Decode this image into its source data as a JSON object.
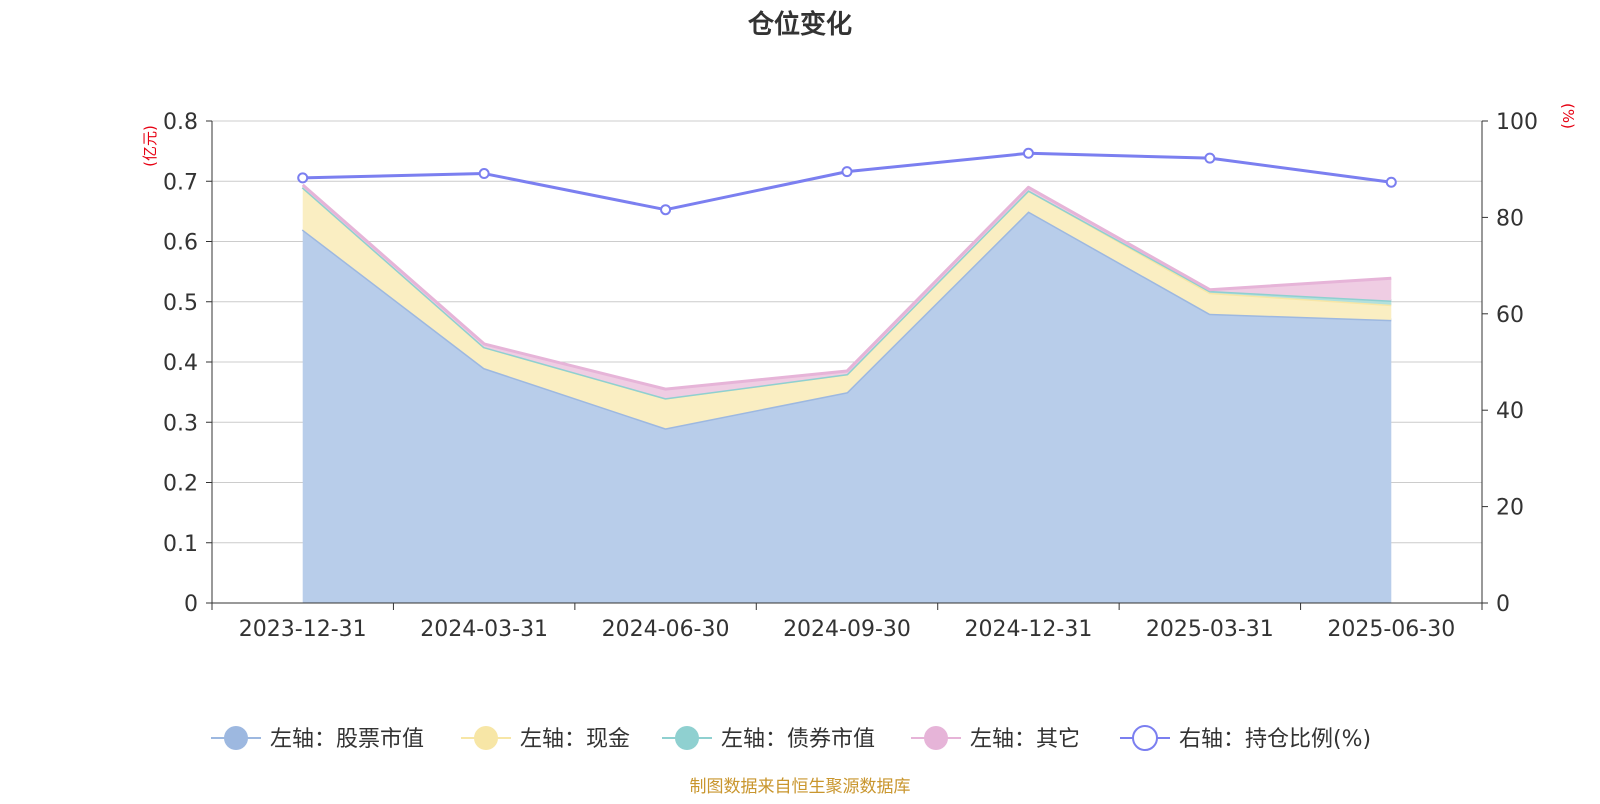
{
  "chart_data": {
    "type": "area",
    "title": "仓位变化",
    "categories": [
      "2023-12-31",
      "2024-03-31",
      "2024-06-30",
      "2024-09-30",
      "2024-12-31",
      "2025-03-31",
      "2025-06-30"
    ],
    "left_axis": {
      "label": "(亿元)",
      "ylim": [
        0,
        0.8
      ],
      "ticks": [
        "0",
        "0.1",
        "0.2",
        "0.3",
        "0.4",
        "0.5",
        "0.6",
        "0.7",
        "0.8"
      ]
    },
    "right_axis": {
      "label": "(%)",
      "ylim": [
        0,
        100
      ],
      "ticks": [
        "0",
        "20",
        "40",
        "60",
        "80",
        "100"
      ]
    },
    "stacked": true,
    "grid": true,
    "legend_position": "bottom",
    "series": [
      {
        "name": "左轴：股票市值",
        "axis": "left",
        "kind": "area",
        "color": "#9db8e0",
        "fill": "#b8cdea",
        "values": [
          0.62,
          0.39,
          0.29,
          0.35,
          0.65,
          0.48,
          0.47
        ]
      },
      {
        "name": "左轴：现金",
        "axis": "left",
        "kind": "area",
        "color": "#f7e6a6",
        "fill": "#faeec2",
        "values": [
          0.07,
          0.035,
          0.05,
          0.03,
          0.035,
          0.035,
          0.025
        ]
      },
      {
        "name": "左轴：债券市值",
        "axis": "left",
        "kind": "area",
        "color": "#8fd0d0",
        "fill": "#b2e0dc",
        "values": [
          0,
          0,
          0,
          0,
          0,
          0.003,
          0.007
        ]
      },
      {
        "name": "左轴：其它",
        "axis": "left",
        "kind": "area",
        "color": "#e6b4d8",
        "fill": "#efcde3",
        "values": [
          0.004,
          0.005,
          0.015,
          0.005,
          0.005,
          0.002,
          0.037
        ]
      },
      {
        "name": "右轴：持仓比例(%)",
        "axis": "right",
        "kind": "line",
        "color": "#7b7ff0",
        "values": [
          88.2,
          89.1,
          81.6,
          89.5,
          93.3,
          92.3,
          87.3
        ]
      }
    ]
  },
  "footer": {
    "source": "制图数据来自恒生聚源数据库"
  },
  "colors": {
    "title": "#333333",
    "axis_label": "#e60012",
    "source": "#c9962e"
  }
}
